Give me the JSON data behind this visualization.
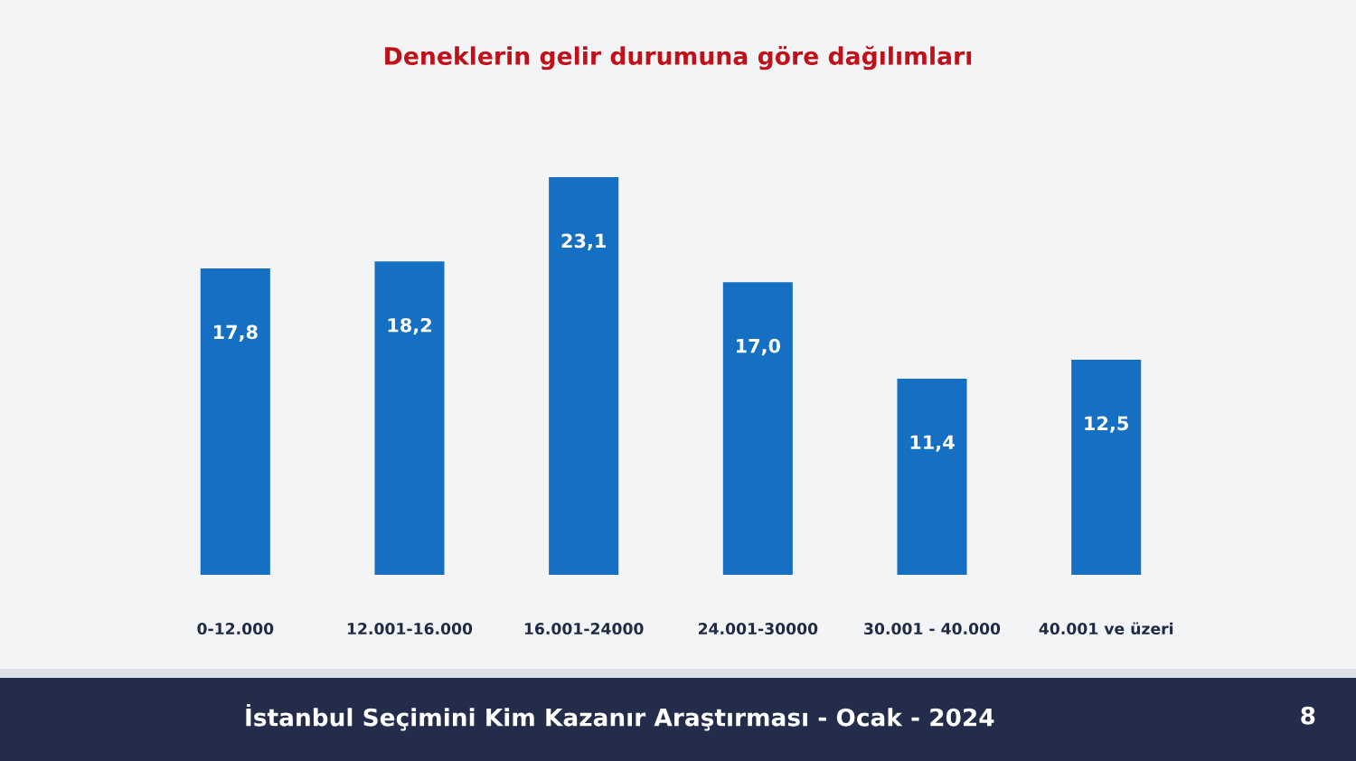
{
  "chart_data": {
    "type": "bar",
    "title": "Deneklerin gelir durumuna göre dağılımları",
    "categories": [
      "0-12.000",
      "12.001-16.000",
      "16.001-24000",
      "24.001-30000",
      "30.001 - 40.000",
      "40.001 ve üzeri"
    ],
    "values": [
      17.8,
      18.2,
      23.1,
      17.0,
      11.4,
      12.5
    ],
    "color": "#1570c4",
    "value_labels": [
      "17,8",
      "18,2",
      "23,1",
      "17,0",
      "11,4",
      "12,5"
    ],
    "annotations": [
      "İstanbul Seçimini Kim Kazanır Araştırması - Ocak - 2024",
      "8"
    ]
  }
}
